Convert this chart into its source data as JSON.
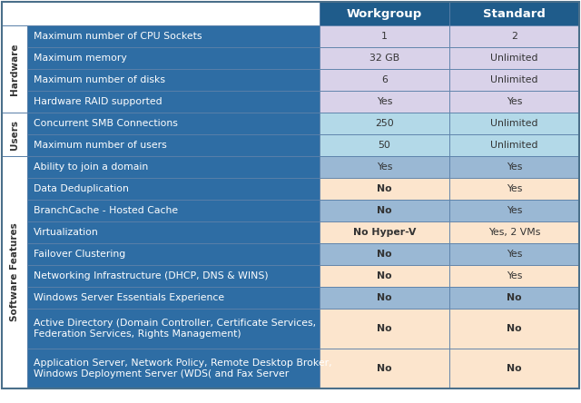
{
  "header": [
    "",
    "Workgroup",
    "Standard"
  ],
  "header_bg": "#1f5c8b",
  "header_text_color": "#ffffff",
  "sections": [
    {
      "label": "Hardware",
      "label_bg": "#ffffff",
      "label_text_color": "#333333",
      "rows": [
        {
          "feature": "Maximum number of CPU Sockets",
          "workgroup": "1",
          "standard": "2",
          "row_bg": "#d9d2e9",
          "workgroup_bold": false,
          "standard_bold": false
        },
        {
          "feature": "Maximum memory",
          "workgroup": "32 GB",
          "standard": "Unlimited",
          "row_bg": "#d9d2e9",
          "workgroup_bold": false,
          "standard_bold": false
        },
        {
          "feature": "Maximum number of disks",
          "workgroup": "6",
          "standard": "Unlimited",
          "row_bg": "#d9d2e9",
          "workgroup_bold": false,
          "standard_bold": false
        },
        {
          "feature": "Hardware RAID supported",
          "workgroup": "Yes",
          "standard": "Yes",
          "row_bg": "#d9d2e9",
          "workgroup_bold": false,
          "standard_bold": false
        }
      ]
    },
    {
      "label": "Users",
      "label_bg": "#ffffff",
      "label_text_color": "#333333",
      "rows": [
        {
          "feature": "Concurrent SMB Connections",
          "workgroup": "250",
          "standard": "Unlimited",
          "row_bg": "#b3d9e8",
          "workgroup_bold": false,
          "standard_bold": false
        },
        {
          "feature": "Maximum number of users",
          "workgroup": "50",
          "standard": "Unlimited",
          "row_bg": "#b3d9e8",
          "workgroup_bold": false,
          "standard_bold": false
        }
      ]
    },
    {
      "label": "Software Features",
      "label_bg": "#ffffff",
      "label_text_color": "#333333",
      "rows": [
        {
          "feature": "Ability to join a domain",
          "workgroup": "Yes",
          "standard": "Yes",
          "row_bg": "#9ab8d4",
          "workgroup_bold": false,
          "standard_bold": false
        },
        {
          "feature": "Data Deduplication",
          "workgroup": "No",
          "standard": "Yes",
          "row_bg": "#fce5cd",
          "workgroup_bold": true,
          "standard_bold": false
        },
        {
          "feature": "BranchCache - Hosted Cache",
          "workgroup": "No",
          "standard": "Yes",
          "row_bg": "#9ab8d4",
          "workgroup_bold": true,
          "standard_bold": false
        },
        {
          "feature": "Virtualization",
          "workgroup": "No Hyper-V",
          "standard": "Yes, 2 VMs",
          "row_bg": "#fce5cd",
          "workgroup_bold": true,
          "standard_bold": false
        },
        {
          "feature": "Failover Clustering",
          "workgroup": "No",
          "standard": "Yes",
          "row_bg": "#9ab8d4",
          "workgroup_bold": true,
          "standard_bold": false
        },
        {
          "feature": "Networking Infrastructure (DHCP, DNS & WINS)",
          "workgroup": "No",
          "standard": "Yes",
          "row_bg": "#fce5cd",
          "workgroup_bold": true,
          "standard_bold": false
        },
        {
          "feature": "Windows Server Essentials Experience",
          "workgroup": "No",
          "standard": "No",
          "row_bg": "#9ab8d4",
          "workgroup_bold": true,
          "standard_bold": true
        },
        {
          "feature": "Active Directory (Domain Controller, Certificate Services,\nFederation Services, Rights Management)",
          "workgroup": "No",
          "standard": "No",
          "row_bg": "#fce5cd",
          "workgroup_bold": true,
          "standard_bold": true
        },
        {
          "feature": "Application Server, Network Policy, Remote Desktop Broker,\nWindows Deployment Server (WDS( and Fax Server",
          "workgroup": "No",
          "standard": "No",
          "row_bg": "#fce5cd",
          "workgroup_bold": true,
          "standard_bold": true
        }
      ]
    }
  ],
  "feature_col_bg": "#2e6da4",
  "border_color": "#5a7fa8",
  "outer_border_color": "#4a6f8a",
  "feature_text_color": "#ffffff",
  "value_text_color": "#333333",
  "font_size": 7.8,
  "header_font_size": 9.5,
  "section_label_fontsize": 7.5,
  "fig_width": 6.4,
  "fig_height": 4.44,
  "dpi": 100
}
